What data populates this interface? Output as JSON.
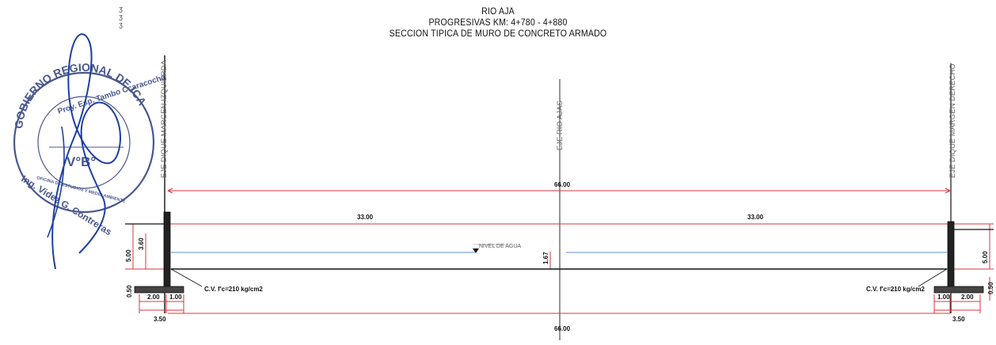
{
  "titles": {
    "line1": "RIO AJA",
    "line2": "PROGRESIVAS KM: 4+780 - 4+880",
    "line3": "SECCION TIPICA DE MURO DE CONCRETO ARMADO"
  },
  "axes": {
    "left": "EJE DIQUE MARGEN IZQUIERDA",
    "center": "EJE RIO AJAS",
    "right": "EJE DIQUE MARGEN DERECHO"
  },
  "dimensions": {
    "total_top": "66.00",
    "total_bottom": "66.00",
    "half_left": "33.00",
    "half_right": "33.00",
    "left_height": "5.00",
    "left_wall_height": "3.60",
    "right_height": "5.00",
    "water_depth": "1.67",
    "left_footing": "2.00",
    "left_toe": "1.00",
    "left_base": "3.50",
    "left_small": "0.50",
    "right_toe": "1.00",
    "right_footing": "2.00",
    "right_base": "3.50",
    "right_small": "0.50"
  },
  "labels": {
    "water_level": "NIVEL DE AGUA",
    "left_concrete": "C.V. f'c=210 kg/cm2",
    "right_concrete": "C.V. f'c=210 kg/cm2"
  },
  "stamp": {
    "ring_text": "GOBIERNO REGIONAL DE ICA",
    "inner_text": "Proy. Esp. Tambo Ccaracocha",
    "center": "V°B°",
    "office": "OFICINA DE ESTUDIOS Y MEDIO AMBIENTE",
    "signer": "Ing. Videz G. Contreras"
  },
  "colors": {
    "dimension_line": "#d9363e",
    "water": "#5b8fd6",
    "structure": "#111111",
    "stamp": "#2b3a7a",
    "signature": "#1f3fa3"
  }
}
